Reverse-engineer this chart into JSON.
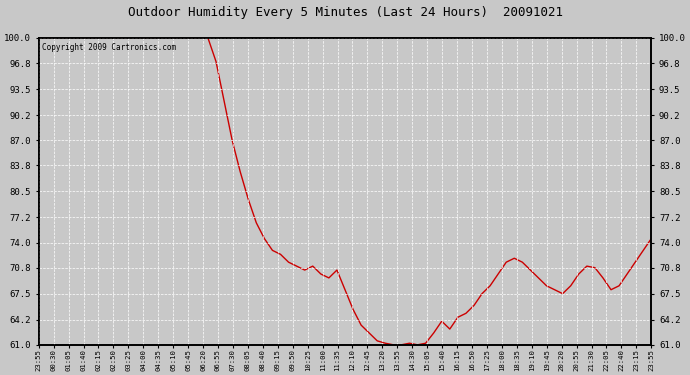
{
  "title": "Outdoor Humidity Every 5 Minutes (Last 24 Hours)  20091021",
  "copyright_text": "Copyright 2009 Cartronics.com",
  "line_color": "#cc0000",
  "background_color": "#c8c8c8",
  "plot_bg_color": "#c8c8c8",
  "grid_color": "#ffffff",
  "border_color": "#000000",
  "ylim": [
    61.0,
    100.0
  ],
  "yticks": [
    61.0,
    64.2,
    67.5,
    70.8,
    74.0,
    77.2,
    80.5,
    83.8,
    87.0,
    90.2,
    93.5,
    96.8,
    100.0
  ],
  "x_labels": [
    "23:55",
    "00:30",
    "01:05",
    "01:40",
    "02:15",
    "02:50",
    "03:25",
    "04:00",
    "04:35",
    "05:10",
    "05:45",
    "06:20",
    "06:55",
    "07:30",
    "08:05",
    "08:40",
    "09:15",
    "09:50",
    "10:25",
    "11:00",
    "11:35",
    "12:10",
    "12:45",
    "13:20",
    "13:55",
    "14:30",
    "15:05",
    "15:40",
    "16:15",
    "16:50",
    "17:25",
    "18:00",
    "18:35",
    "19:10",
    "19:45",
    "20:20",
    "20:55",
    "21:30",
    "22:05",
    "22:40",
    "23:15",
    "23:55"
  ],
  "humidity_data": [
    [
      0,
      100.0
    ],
    [
      1,
      100.0
    ],
    [
      2,
      100.0
    ],
    [
      3,
      100.0
    ],
    [
      4,
      100.0
    ],
    [
      5,
      100.0
    ],
    [
      6,
      100.0
    ],
    [
      7,
      100.0
    ],
    [
      8,
      100.0
    ],
    [
      9,
      100.0
    ],
    [
      10,
      100.0
    ],
    [
      11,
      100.0
    ],
    [
      12,
      100.0
    ],
    [
      13,
      100.0
    ],
    [
      14,
      100.0
    ],
    [
      15,
      100.0
    ],
    [
      16,
      100.0
    ],
    [
      17,
      100.0
    ],
    [
      18,
      100.0
    ],
    [
      19,
      100.0
    ],
    [
      20,
      100.0
    ],
    [
      21,
      100.0
    ],
    [
      22,
      97.0
    ],
    [
      23,
      92.0
    ],
    [
      24,
      87.0
    ],
    [
      25,
      83.0
    ],
    [
      26,
      79.5
    ],
    [
      27,
      76.5
    ],
    [
      28,
      74.5
    ],
    [
      29,
      73.0
    ],
    [
      30,
      72.5
    ],
    [
      31,
      71.5
    ],
    [
      32,
      71.0
    ],
    [
      33,
      70.5
    ],
    [
      34,
      71.0
    ],
    [
      35,
      70.0
    ],
    [
      36,
      69.5
    ],
    [
      37,
      70.5
    ],
    [
      38,
      68.0
    ],
    [
      39,
      65.5
    ],
    [
      40,
      63.5
    ],
    [
      41,
      62.5
    ],
    [
      42,
      61.5
    ],
    [
      43,
      61.2
    ],
    [
      44,
      61.0
    ],
    [
      45,
      61.0
    ],
    [
      46,
      61.2
    ],
    [
      47,
      61.0
    ],
    [
      48,
      61.2
    ],
    [
      49,
      62.5
    ],
    [
      50,
      64.0
    ],
    [
      51,
      63.0
    ],
    [
      52,
      64.5
    ],
    [
      53,
      65.0
    ],
    [
      54,
      66.0
    ],
    [
      55,
      67.5
    ],
    [
      56,
      68.5
    ],
    [
      57,
      70.0
    ],
    [
      58,
      71.5
    ],
    [
      59,
      72.0
    ],
    [
      60,
      71.5
    ],
    [
      61,
      70.5
    ],
    [
      62,
      69.5
    ],
    [
      63,
      68.5
    ],
    [
      64,
      68.0
    ],
    [
      65,
      67.5
    ],
    [
      66,
      68.5
    ],
    [
      67,
      70.0
    ],
    [
      68,
      71.0
    ],
    [
      69,
      70.8
    ],
    [
      70,
      69.5
    ],
    [
      71,
      68.0
    ],
    [
      72,
      68.5
    ],
    [
      73,
      70.0
    ],
    [
      74,
      71.5
    ],
    [
      75,
      73.0
    ],
    [
      76,
      74.5
    ]
  ],
  "n_data_points": 77
}
